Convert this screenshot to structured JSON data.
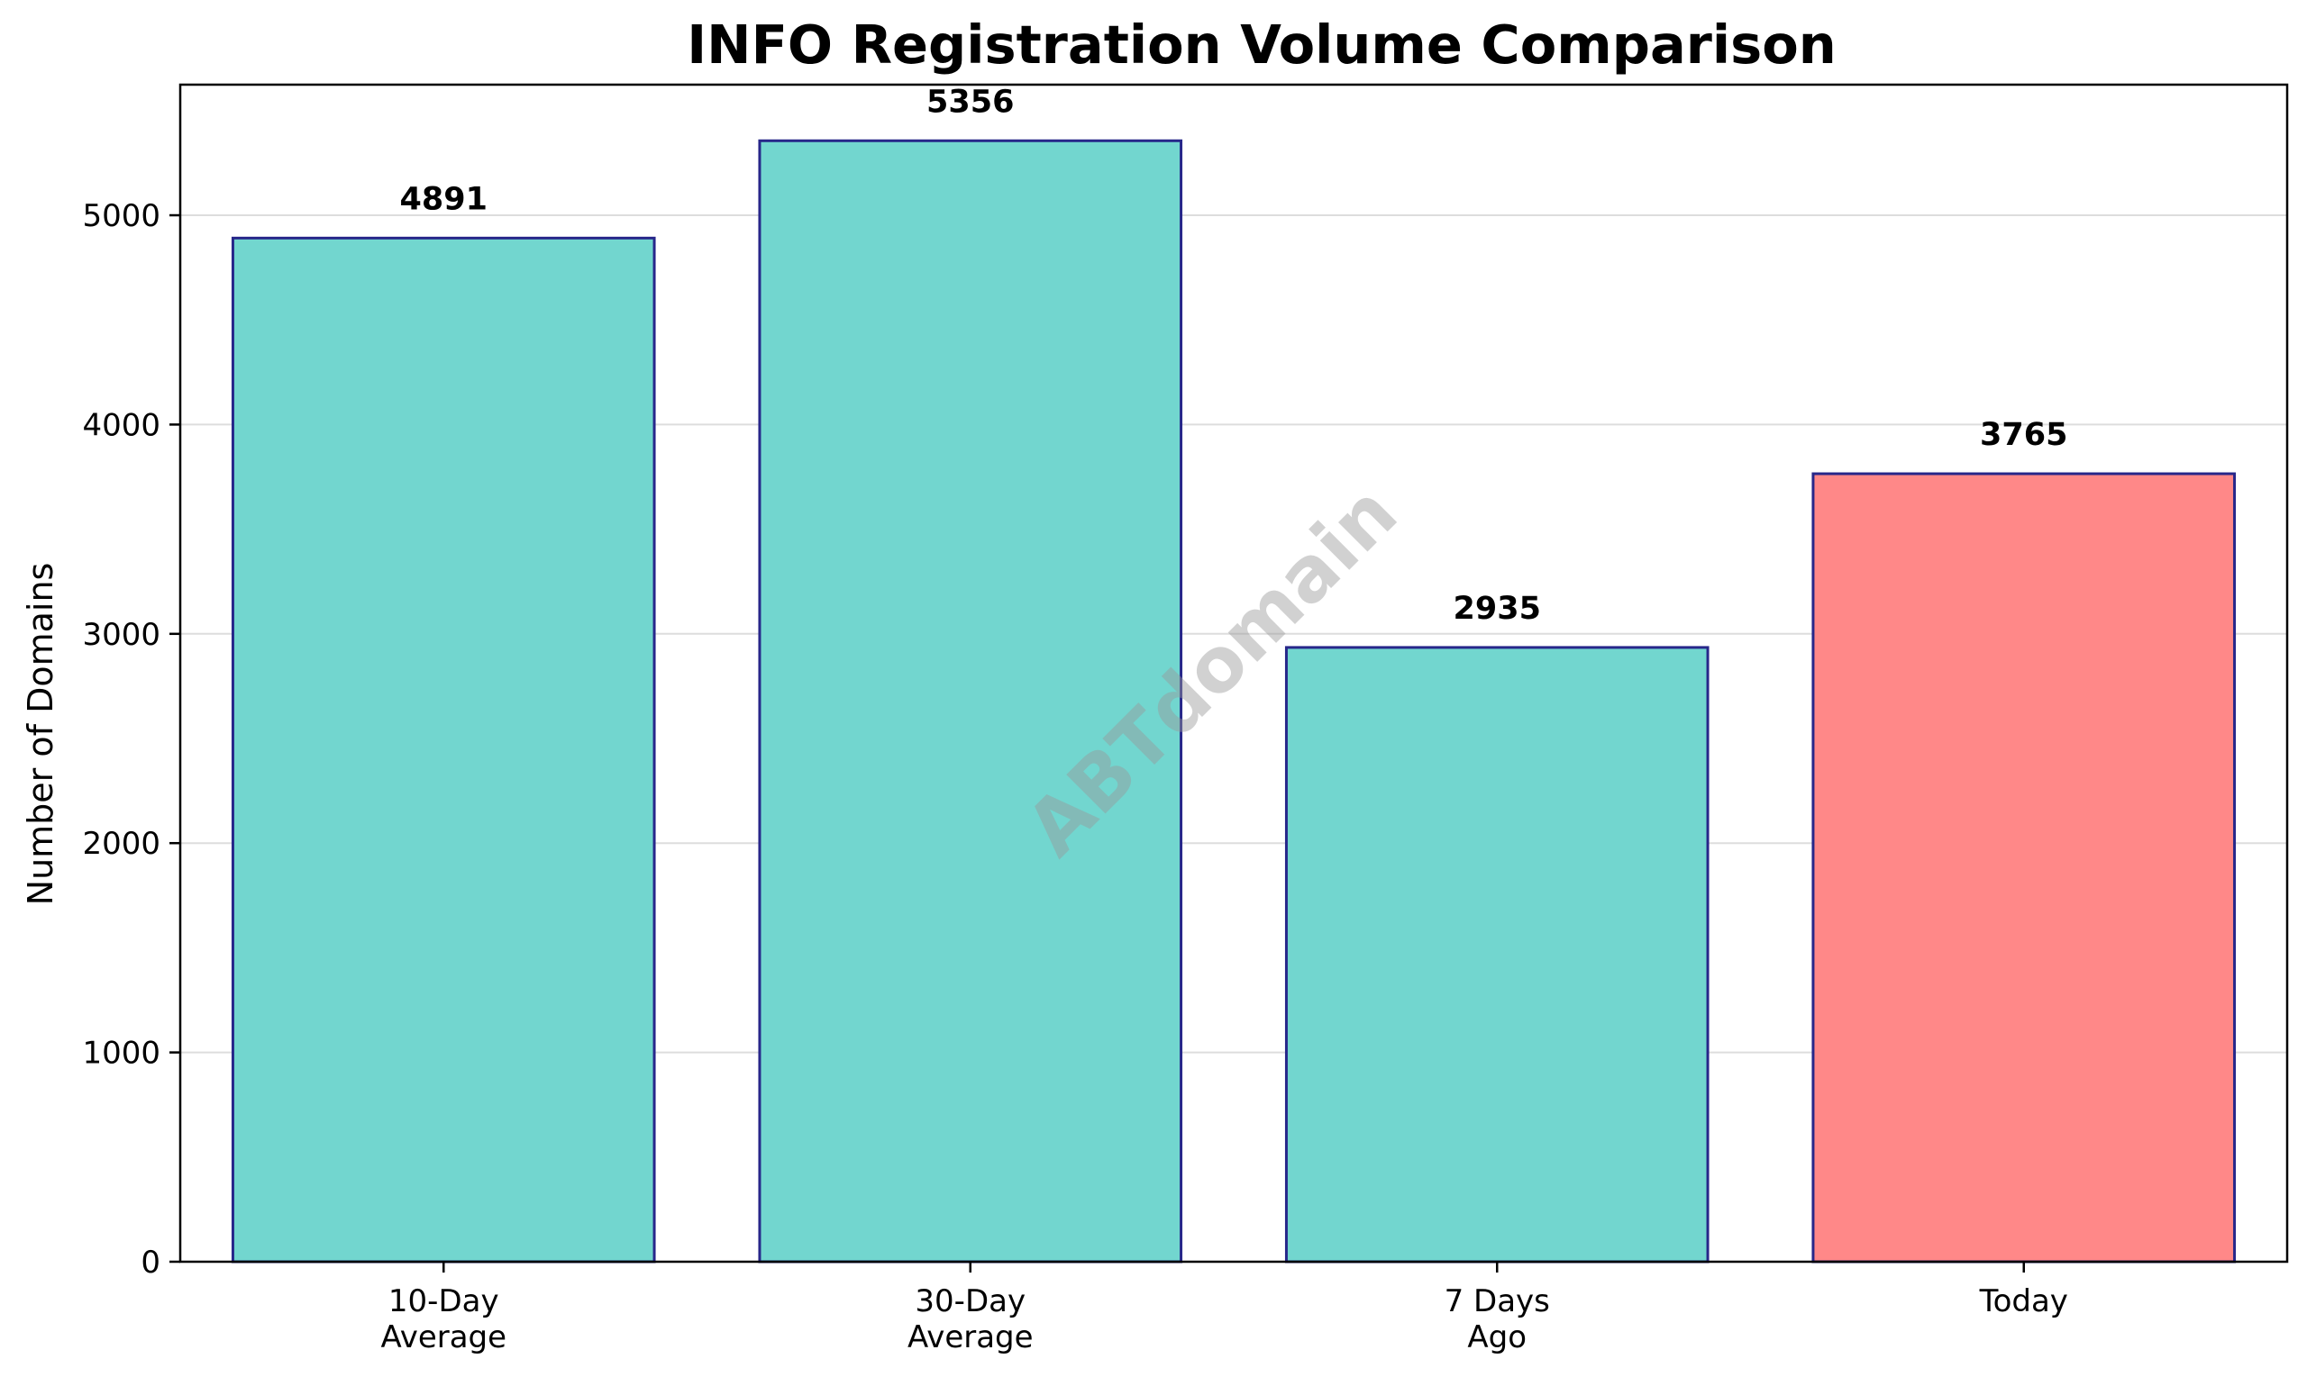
{
  "chart_data": {
    "type": "bar",
    "title": "INFO Registration Volume Comparison",
    "xlabel": "",
    "ylabel": "Number of Domains",
    "categories": [
      "10-Day\nAverage",
      "30-Day\nAverage",
      "7 Days\nAgo",
      "Today"
    ],
    "values": [
      4891,
      5356,
      2935,
      3765
    ],
    "value_labels": [
      "4891",
      "5356",
      "2935",
      "3765"
    ],
    "bar_colors": [
      "#72d6cf",
      "#72d6cf",
      "#72d6cf",
      "#ff8888"
    ],
    "bar_edge_color": "#27278a",
    "ylim": [
      0,
      5624
    ],
    "yticks": [
      0,
      1000,
      2000,
      3000,
      4000,
      5000
    ],
    "grid": "horizontal",
    "watermark": "ABTdomain"
  }
}
